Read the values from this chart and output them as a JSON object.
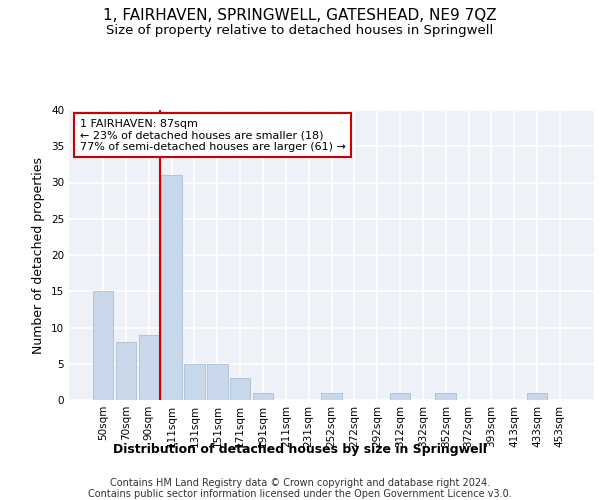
{
  "title": "1, FAIRHAVEN, SPRINGWELL, GATESHEAD, NE9 7QZ",
  "subtitle": "Size of property relative to detached houses in Springwell",
  "xlabel": "Distribution of detached houses by size in Springwell",
  "ylabel": "Number of detached properties",
  "categories": [
    "50sqm",
    "70sqm",
    "90sqm",
    "111sqm",
    "131sqm",
    "151sqm",
    "171sqm",
    "191sqm",
    "211sqm",
    "231sqm",
    "252sqm",
    "272sqm",
    "292sqm",
    "312sqm",
    "332sqm",
    "352sqm",
    "372sqm",
    "393sqm",
    "413sqm",
    "433sqm",
    "453sqm"
  ],
  "values": [
    15,
    8,
    9,
    31,
    5,
    5,
    3,
    1,
    0,
    0,
    1,
    0,
    0,
    1,
    0,
    1,
    0,
    0,
    0,
    1,
    0
  ],
  "bar_color": "#c8d8ea",
  "bar_edgecolor": "#a8bfd4",
  "vline_color": "#cc0000",
  "annotation_text": "1 FAIRHAVEN: 87sqm\n← 23% of detached houses are smaller (18)\n77% of semi-detached houses are larger (61) →",
  "annotation_box_color": "#cc0000",
  "ylim": [
    0,
    40
  ],
  "yticks": [
    0,
    5,
    10,
    15,
    20,
    25,
    30,
    35,
    40
  ],
  "footer_line1": "Contains HM Land Registry data © Crown copyright and database right 2024.",
  "footer_line2": "Contains public sector information licensed under the Open Government Licence v3.0.",
  "background_color": "#eef2f8",
  "grid_color": "#ffffff",
  "title_fontsize": 11,
  "subtitle_fontsize": 9.5,
  "axis_label_fontsize": 9,
  "tick_fontsize": 7.5,
  "footer_fontsize": 7
}
